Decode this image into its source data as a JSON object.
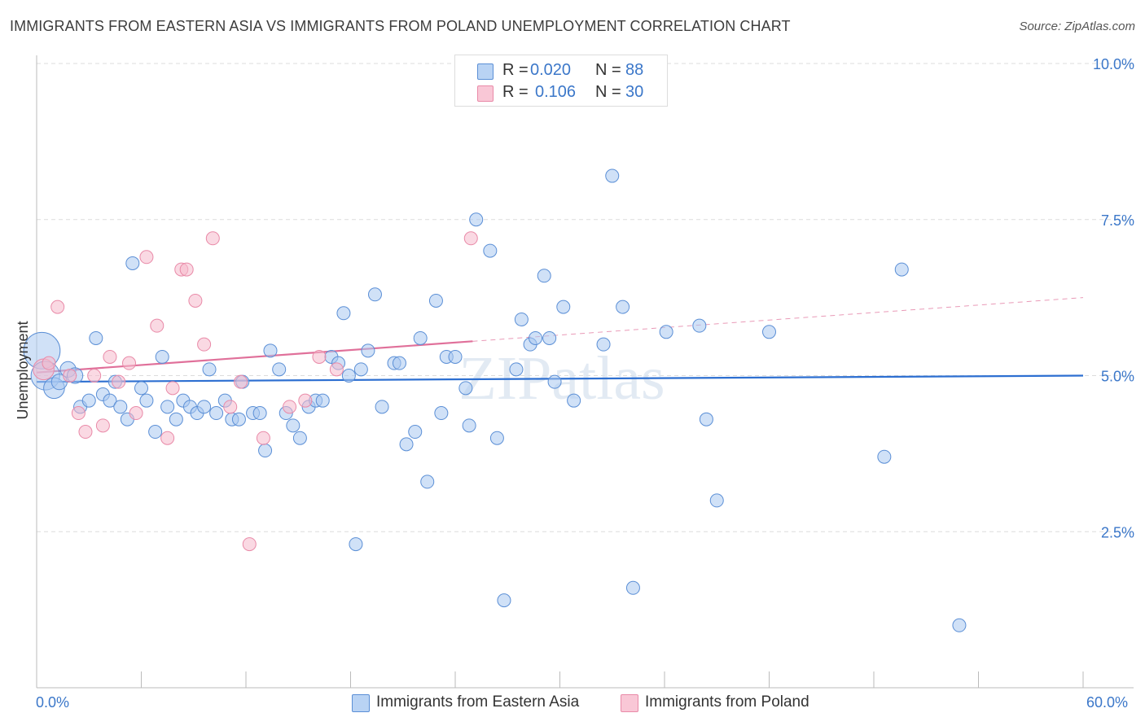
{
  "title": "IMMIGRANTS FROM EASTERN ASIA VS IMMIGRANTS FROM POLAND UNEMPLOYMENT CORRELATION CHART",
  "source": "Source: ZipAtlas.com",
  "watermark": "ZIPatlas",
  "colors": {
    "blue_fill": "#a9c8f0",
    "blue_stroke": "#5b8fd6",
    "blue_line": "#2d6fd1",
    "pink_fill": "#f6b9cc",
    "pink_stroke": "#e98aa8",
    "pink_line": "#e0709a",
    "accent_text": "#3b77c9",
    "grid": "#dcdcdc"
  },
  "legend": {
    "rows": [
      {
        "r_label": "R =",
        "r_value": "0.020",
        "n_label": "N =",
        "n_value": "88"
      },
      {
        "r_label": "R =",
        "r_value": "0.106",
        "n_label": "N =",
        "n_value": "30"
      }
    ]
  },
  "bottom_legend": [
    "Immigrants from Eastern Asia",
    "Immigrants from Poland"
  ],
  "chart_data": {
    "type": "scatter",
    "title": "IMMIGRANTS FROM EASTERN ASIA VS IMMIGRANTS FROM POLAND UNEMPLOYMENT CORRELATION CHART",
    "xlabel": "",
    "ylabel": "Unemployment",
    "xlim": [
      0,
      60
    ],
    "ylim": [
      0,
      10
    ],
    "x_tick_labels": [
      "0.0%",
      "60.0%"
    ],
    "y_ticks": [
      2.5,
      5.0,
      7.5,
      10.0
    ],
    "y_tick_labels": [
      "2.5%",
      "5.0%",
      "7.5%",
      "10.0%"
    ],
    "grid": true,
    "series": [
      {
        "name": "Immigrants from Eastern Asia",
        "r": 0.02,
        "n": 88,
        "trend": {
          "x": [
            0,
            60
          ],
          "y": [
            4.9,
            5.0
          ]
        },
        "points": [
          [
            0.3,
            5.4,
            2.8
          ],
          [
            0.5,
            5.0,
            2.2
          ],
          [
            1.0,
            4.8,
            1.6
          ],
          [
            1.3,
            4.9,
            1.2
          ],
          [
            1.8,
            5.1,
            1.2
          ],
          [
            2.2,
            5.0,
            1.2
          ],
          [
            2.5,
            4.5,
            1.0
          ],
          [
            3.0,
            4.6,
            1.0
          ],
          [
            3.4,
            5.6,
            1.0
          ],
          [
            3.8,
            4.7,
            1.0
          ],
          [
            4.2,
            4.6,
            1.0
          ],
          [
            4.5,
            4.9,
            1.0
          ],
          [
            4.8,
            4.5,
            1.0
          ],
          [
            5.2,
            4.3,
            1.0
          ],
          [
            5.5,
            6.8,
            1.0
          ],
          [
            6.0,
            4.8,
            1.0
          ],
          [
            6.3,
            4.6,
            1.0
          ],
          [
            6.8,
            4.1,
            1.0
          ],
          [
            7.2,
            5.3,
            1.0
          ],
          [
            7.5,
            4.5,
            1.0
          ],
          [
            8.0,
            4.3,
            1.0
          ],
          [
            8.4,
            4.6,
            1.0
          ],
          [
            8.8,
            4.5,
            1.0
          ],
          [
            9.2,
            4.4,
            1.0
          ],
          [
            9.6,
            4.5,
            1.0
          ],
          [
            9.9,
            5.1,
            1.0
          ],
          [
            10.3,
            4.4,
            1.0
          ],
          [
            10.8,
            4.6,
            1.0
          ],
          [
            11.2,
            4.3,
            1.0
          ],
          [
            11.6,
            4.3,
            1.0
          ],
          [
            11.8,
            4.9,
            1.0
          ],
          [
            12.4,
            4.4,
            1.0
          ],
          [
            12.8,
            4.4,
            1.0
          ],
          [
            13.1,
            3.8,
            1.0
          ],
          [
            13.4,
            5.4,
            1.0
          ],
          [
            13.9,
            5.1,
            1.0
          ],
          [
            14.3,
            4.4,
            1.0
          ],
          [
            14.7,
            4.2,
            1.0
          ],
          [
            15.1,
            4.0,
            1.0
          ],
          [
            15.6,
            4.5,
            1.0
          ],
          [
            16.0,
            4.6,
            1.0
          ],
          [
            16.4,
            4.6,
            1.0
          ],
          [
            16.9,
            5.3,
            1.0
          ],
          [
            17.3,
            5.2,
            1.0
          ],
          [
            17.6,
            6.0,
            1.0
          ],
          [
            17.9,
            5.0,
            1.0
          ],
          [
            18.3,
            2.3,
            1.0
          ],
          [
            18.6,
            5.1,
            1.0
          ],
          [
            19.0,
            5.4,
            1.0
          ],
          [
            19.4,
            6.3,
            1.0
          ],
          [
            19.8,
            4.5,
            1.0
          ],
          [
            20.5,
            5.2,
            1.0
          ],
          [
            20.8,
            5.2,
            1.0
          ],
          [
            21.2,
            3.9,
            1.0
          ],
          [
            21.7,
            4.1,
            1.0
          ],
          [
            22.0,
            5.6,
            1.0
          ],
          [
            22.4,
            3.3,
            1.0
          ],
          [
            22.9,
            6.2,
            1.0
          ],
          [
            23.2,
            4.4,
            1.0
          ],
          [
            23.5,
            5.3,
            1.0
          ],
          [
            24.0,
            5.3,
            1.0
          ],
          [
            24.6,
            4.8,
            1.0
          ],
          [
            24.8,
            4.2,
            1.0
          ],
          [
            25.2,
            7.5,
            1.0
          ],
          [
            26.0,
            7.0,
            1.0
          ],
          [
            26.4,
            4.0,
            1.0
          ],
          [
            26.8,
            1.4,
            1.0
          ],
          [
            27.5,
            5.1,
            1.0
          ],
          [
            27.8,
            5.9,
            1.0
          ],
          [
            28.3,
            5.5,
            1.0
          ],
          [
            28.6,
            5.6,
            1.0
          ],
          [
            29.1,
            6.6,
            1.0
          ],
          [
            29.4,
            5.6,
            1.0
          ],
          [
            29.7,
            4.9,
            1.0
          ],
          [
            30.2,
            6.1,
            1.0
          ],
          [
            30.8,
            4.6,
            1.0
          ],
          [
            32.5,
            5.5,
            1.0
          ],
          [
            33.0,
            8.2,
            1.0
          ],
          [
            33.6,
            6.1,
            1.0
          ],
          [
            34.2,
            1.6,
            1.0
          ],
          [
            36.1,
            5.7,
            1.0
          ],
          [
            38.0,
            5.8,
            1.0
          ],
          [
            38.4,
            4.3,
            1.0
          ],
          [
            39.0,
            3.0,
            1.0
          ],
          [
            42.0,
            5.7,
            1.0
          ],
          [
            48.6,
            3.7,
            1.0
          ],
          [
            49.6,
            6.7,
            1.0
          ],
          [
            52.9,
            1.0,
            1.0
          ]
        ]
      },
      {
        "name": "Immigrants from Poland",
        "r": 0.106,
        "n": 30,
        "trend": {
          "x": [
            0,
            25
          ],
          "y": [
            5.05,
            5.55
          ]
        },
        "trend_extension": {
          "x": [
            25,
            60
          ],
          "y": [
            5.55,
            6.25
          ]
        },
        "points": [
          [
            0.4,
            5.1,
            1.6
          ],
          [
            0.7,
            5.2,
            1.0
          ],
          [
            1.2,
            6.1,
            1.0
          ],
          [
            1.9,
            5.0,
            1.0
          ],
          [
            2.4,
            4.4,
            1.0
          ],
          [
            2.8,
            4.1,
            1.0
          ],
          [
            3.3,
            5.0,
            1.0
          ],
          [
            3.8,
            4.2,
            1.0
          ],
          [
            4.2,
            5.3,
            1.0
          ],
          [
            4.7,
            4.9,
            1.0
          ],
          [
            5.3,
            5.2,
            1.0
          ],
          [
            5.7,
            4.4,
            1.0
          ],
          [
            6.3,
            6.9,
            1.0
          ],
          [
            6.9,
            5.8,
            1.0
          ],
          [
            7.5,
            4.0,
            1.0
          ],
          [
            7.8,
            4.8,
            1.0
          ],
          [
            8.3,
            6.7,
            1.0
          ],
          [
            8.6,
            6.7,
            1.0
          ],
          [
            9.1,
            6.2,
            1.0
          ],
          [
            9.6,
            5.5,
            1.0
          ],
          [
            10.1,
            7.2,
            1.0
          ],
          [
            11.1,
            4.5,
            1.0
          ],
          [
            11.7,
            4.9,
            1.0
          ],
          [
            12.2,
            2.3,
            1.0
          ],
          [
            13.0,
            4.0,
            1.0
          ],
          [
            14.5,
            4.5,
            1.0
          ],
          [
            15.4,
            4.6,
            1.0
          ],
          [
            16.2,
            5.3,
            1.0
          ],
          [
            17.2,
            5.1,
            1.0
          ],
          [
            24.9,
            7.2,
            1.0
          ]
        ]
      }
    ]
  }
}
